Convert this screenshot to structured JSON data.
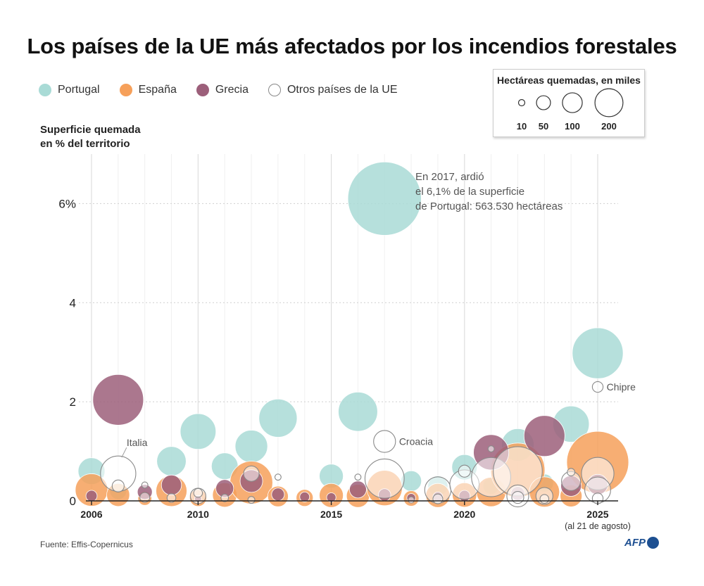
{
  "title": "Los países de la UE más afectados por los incendios forestales",
  "legend": [
    {
      "label": "Portugal",
      "color": "#a9dbd6"
    },
    {
      "label": "España",
      "color": "#f6a05a"
    },
    {
      "label": "Grecia",
      "color": "#9c5f7a"
    },
    {
      "label": "Otros países de la UE",
      "color": "#ffffff"
    }
  ],
  "size_legend": {
    "title": "Hectáreas quemadas, en miles",
    "sizes": [
      {
        "label": "10",
        "value": 10
      },
      {
        "label": "50",
        "value": 50
      },
      {
        "label": "100",
        "value": 100
      },
      {
        "label": "200",
        "value": 200
      }
    ]
  },
  "yaxis_label": {
    "line1": "Superficie quemada",
    "line2": "en % del territorio"
  },
  "source": "Fuente: Effis-Copernicus",
  "logo": "AFP",
  "chart_data": {
    "type": "scatter",
    "title": "Los países de la UE más afectados por los incendios forestales",
    "xlabel": "",
    "ylabel": "Superficie quemada en % del territorio",
    "xlim": [
      2006,
      2025
    ],
    "ylim": [
      0,
      7
    ],
    "x_ticks": [
      {
        "label": "2006",
        "value": 2006,
        "bold": true
      },
      {
        "label": "2010",
        "value": 2010,
        "bold": true
      },
      {
        "label": "2015",
        "value": 2015,
        "bold": true
      },
      {
        "label": "2020",
        "value": 2020,
        "bold": true
      },
      {
        "label": "2025",
        "value": 2025,
        "bold": true
      }
    ],
    "x_note": "(al 21 de agosto)",
    "y_ticks": [
      {
        "label": "0",
        "value": 0
      },
      {
        "label": "2",
        "value": 2
      },
      {
        "label": "4",
        "value": 4
      },
      {
        "label": "6%",
        "value": 6
      }
    ],
    "series": [
      {
        "name": "Portugal",
        "color": "#a9dbd6",
        "points": [
          {
            "x": 2006,
            "y": 0.6,
            "size": 75
          },
          {
            "x": 2007,
            "y": 0.2,
            "size": 30
          },
          {
            "x": 2009,
            "y": 0.8,
            "size": 90
          },
          {
            "x": 2010,
            "y": 1.4,
            "size": 133
          },
          {
            "x": 2011,
            "y": 0.7,
            "size": 74
          },
          {
            "x": 2012,
            "y": 1.1,
            "size": 110
          },
          {
            "x": 2013,
            "y": 1.67,
            "size": 152
          },
          {
            "x": 2015,
            "y": 0.5,
            "size": 60
          },
          {
            "x": 2016,
            "y": 1.8,
            "size": 161
          },
          {
            "x": 2017,
            "y": 6.1,
            "size": 563
          },
          {
            "x": 2018,
            "y": 0.4,
            "size": 44
          },
          {
            "x": 2019,
            "y": 0.3,
            "size": 42
          },
          {
            "x": 2020,
            "y": 0.68,
            "size": 67
          },
          {
            "x": 2021,
            "y": 0.3,
            "size": 28
          },
          {
            "x": 2022,
            "y": 1.13,
            "size": 110
          },
          {
            "x": 2023,
            "y": 0.36,
            "size": 34
          },
          {
            "x": 2024,
            "y": 1.55,
            "size": 137
          },
          {
            "x": 2025,
            "y": 2.98,
            "size": 270
          }
        ]
      },
      {
        "name": "España",
        "color": "#f6a05a",
        "points": [
          {
            "x": 2006,
            "y": 0.22,
            "size": 110
          },
          {
            "x": 2007,
            "y": 0.12,
            "size": 55
          },
          {
            "x": 2008,
            "y": 0.05,
            "size": 20
          },
          {
            "x": 2009,
            "y": 0.2,
            "size": 100
          },
          {
            "x": 2010,
            "y": 0.06,
            "size": 30
          },
          {
            "x": 2011,
            "y": 0.12,
            "size": 62
          },
          {
            "x": 2012,
            "y": 0.37,
            "size": 190
          },
          {
            "x": 2013,
            "y": 0.09,
            "size": 44
          },
          {
            "x": 2014,
            "y": 0.06,
            "size": 30
          },
          {
            "x": 2015,
            "y": 0.11,
            "size": 60
          },
          {
            "x": 2016,
            "y": 0.1,
            "size": 55
          },
          {
            "x": 2017,
            "y": 0.26,
            "size": 130
          },
          {
            "x": 2018,
            "y": 0.05,
            "size": 25
          },
          {
            "x": 2019,
            "y": 0.11,
            "size": 60
          },
          {
            "x": 2020,
            "y": 0.12,
            "size": 62
          },
          {
            "x": 2021,
            "y": 0.18,
            "size": 90
          },
          {
            "x": 2022,
            "y": 0.62,
            "size": 306
          },
          {
            "x": 2023,
            "y": 0.18,
            "size": 95
          },
          {
            "x": 2024,
            "y": 0.1,
            "size": 50
          },
          {
            "x": 2025,
            "y": 0.78,
            "size": 400
          }
        ]
      },
      {
        "name": "Grecia",
        "color": "#9c5f7a",
        "points": [
          {
            "x": 2006,
            "y": 0.1,
            "size": 13
          },
          {
            "x": 2007,
            "y": 2.04,
            "size": 268
          },
          {
            "x": 2008,
            "y": 0.18,
            "size": 23
          },
          {
            "x": 2009,
            "y": 0.32,
            "size": 42
          },
          {
            "x": 2010,
            "y": 0.04,
            "size": 5
          },
          {
            "x": 2011,
            "y": 0.25,
            "size": 33
          },
          {
            "x": 2012,
            "y": 0.4,
            "size": 53
          },
          {
            "x": 2013,
            "y": 0.13,
            "size": 17
          },
          {
            "x": 2014,
            "y": 0.08,
            "size": 10
          },
          {
            "x": 2015,
            "y": 0.07,
            "size": 9
          },
          {
            "x": 2016,
            "y": 0.23,
            "size": 30
          },
          {
            "x": 2017,
            "y": 0.12,
            "size": 16
          },
          {
            "x": 2018,
            "y": 0.06,
            "size": 8
          },
          {
            "x": 2019,
            "y": 0.08,
            "size": 10
          },
          {
            "x": 2020,
            "y": 0.1,
            "size": 13
          },
          {
            "x": 2021,
            "y": 0.98,
            "size": 130
          },
          {
            "x": 2022,
            "y": 0.15,
            "size": 20
          },
          {
            "x": 2023,
            "y": 1.31,
            "size": 174
          },
          {
            "x": 2024,
            "y": 0.3,
            "size": 44
          },
          {
            "x": 2025,
            "y": 0.33,
            "size": 43
          }
        ]
      },
      {
        "name": "Otros países de la UE",
        "color": "#ffffff",
        "points": [
          {
            "x": 2007,
            "y": 0.55,
            "size": 130,
            "label": "Italia"
          },
          {
            "x": 2007,
            "y": 0.3,
            "size": 15
          },
          {
            "x": 2008,
            "y": 0.32,
            "size": 4
          },
          {
            "x": 2008,
            "y": 0.07,
            "size": 10
          },
          {
            "x": 2009,
            "y": 0.06,
            "size": 8
          },
          {
            "x": 2010,
            "y": 0.1,
            "size": 25
          },
          {
            "x": 2010,
            "y": 0.16,
            "size": 8
          },
          {
            "x": 2011,
            "y": 0.06,
            "size": 6
          },
          {
            "x": 2012,
            "y": 0.55,
            "size": 25
          },
          {
            "x": 2012,
            "y": 0.02,
            "size": 5
          },
          {
            "x": 2013,
            "y": 0.48,
            "size": 4
          },
          {
            "x": 2016,
            "y": 0.48,
            "size": 4
          },
          {
            "x": 2017,
            "y": 0.45,
            "size": 160
          },
          {
            "x": 2017,
            "y": 1.2,
            "size": 50,
            "label": "Croacia"
          },
          {
            "x": 2018,
            "y": 0.02,
            "size": 4
          },
          {
            "x": 2019,
            "y": 0.22,
            "size": 72
          },
          {
            "x": 2019,
            "y": 0.04,
            "size": 10
          },
          {
            "x": 2020,
            "y": 0.33,
            "size": 90
          },
          {
            "x": 2020,
            "y": 0.6,
            "size": 15
          },
          {
            "x": 2021,
            "y": 0.48,
            "size": 160
          },
          {
            "x": 2021,
            "y": 1.05,
            "size": 4
          },
          {
            "x": 2022,
            "y": 0.6,
            "size": 250
          },
          {
            "x": 2022,
            "y": 0.1,
            "size": 50
          },
          {
            "x": 2022,
            "y": 0.07,
            "size": 15
          },
          {
            "x": 2023,
            "y": 0.1,
            "size": 30
          },
          {
            "x": 2023,
            "y": 0.04,
            "size": 8
          },
          {
            "x": 2024,
            "y": 0.4,
            "size": 38
          },
          {
            "x": 2024,
            "y": 0.58,
            "size": 6
          },
          {
            "x": 2025,
            "y": 0.55,
            "size": 110
          },
          {
            "x": 2025,
            "y": 0.22,
            "size": 70
          },
          {
            "x": 2025,
            "y": 0.05,
            "size": 12
          },
          {
            "x": 2025,
            "y": 2.3,
            "size": 12,
            "label": "Chipre"
          }
        ]
      }
    ],
    "annotations": [
      {
        "x": 2017,
        "y": 6.1,
        "lines": [
          "En 2017, ardió",
          "el 6,1% de la superficie",
          "de Portugal: 563.530 hectáreas"
        ]
      }
    ]
  }
}
